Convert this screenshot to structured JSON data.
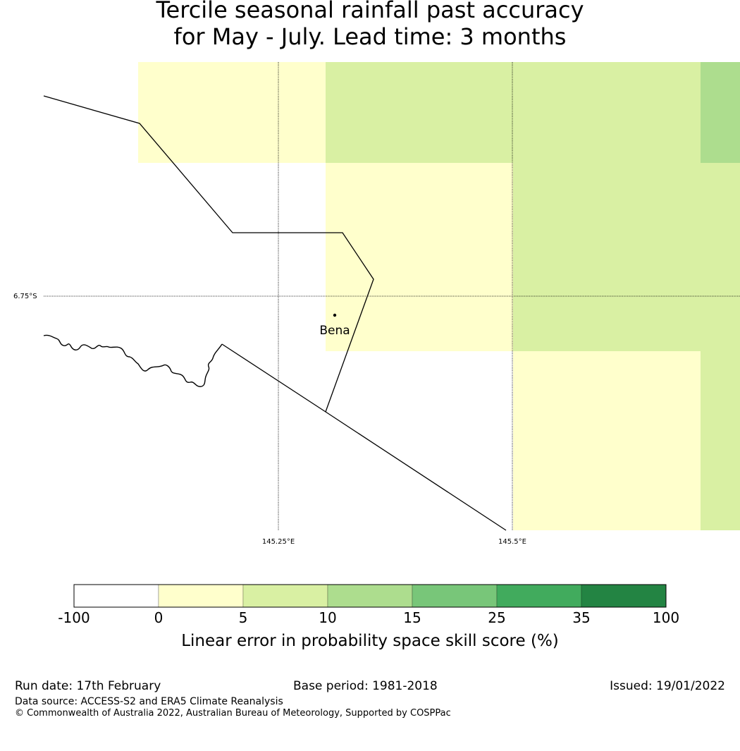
{
  "title": {
    "line1": "Tercile seasonal rainfall past accuracy",
    "line2": "for May - July. Lead time: 3 months"
  },
  "map": {
    "gridlines": {
      "lat_label": "6.75°S",
      "lon_labels": [
        "145.25°E",
        "145.5°E"
      ]
    },
    "place": {
      "name": "Bena"
    },
    "cells": [
      {
        "row": 0,
        "col": 0,
        "category": "0-5"
      },
      {
        "row": 0,
        "col": 1,
        "category": "5-10"
      },
      {
        "row": 0,
        "col": 2,
        "category": "5-10"
      },
      {
        "row": 0,
        "col": 3,
        "category": "10-15"
      },
      {
        "row": 1,
        "col": 1,
        "category": "0-5"
      },
      {
        "row": 1,
        "col": 2,
        "category": "5-10"
      },
      {
        "row": 1,
        "col": 3,
        "category": "5-10"
      },
      {
        "row": 2,
        "col": 1,
        "category": "0-5"
      },
      {
        "row": 2,
        "col": 2,
        "category": "5-10"
      },
      {
        "row": 2,
        "col": 3,
        "category": "5-10"
      },
      {
        "row": 3,
        "col": 2,
        "category": "0-5"
      },
      {
        "row": 3,
        "col": 3,
        "category": "5-10"
      },
      {
        "row": 4,
        "col": 2,
        "category": "0-5"
      },
      {
        "row": 4,
        "col": 3,
        "category": "5-10"
      }
    ]
  },
  "legend": {
    "ticks": [
      "-100",
      "0",
      "5",
      "10",
      "15",
      "25",
      "35",
      "100"
    ],
    "colors": [
      "#ffffff",
      "#ffffcc",
      "#d9f0a3",
      "#addd8e",
      "#78c679",
      "#41ab5d",
      "#238443"
    ],
    "label": "Linear error in probability space skill score (%)"
  },
  "footer": {
    "run_date": "Run date: 17th February",
    "base_period": "Base period: 1981-2018",
    "issued": "Issued: 19/01/2022",
    "data_source": "Data source: ACCESS-S2 and ERA5 Climate Reanalysis",
    "copyright": "© Commonwealth of Australia 2022, Australian Bureau of Meteorology, Supported by COSPPac"
  }
}
